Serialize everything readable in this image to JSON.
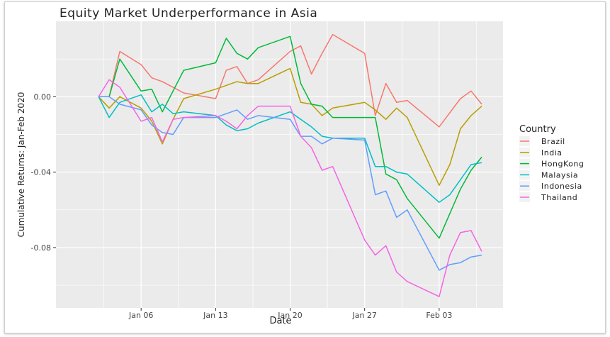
{
  "chart_data": {
    "type": "line",
    "title": "Equity Market Underperformance in Asia",
    "xlabel": "Date",
    "ylabel": "Cumulative Returns: Jan-Feb 2020",
    "x": [
      "2020-01-02",
      "2020-01-03",
      "2020-01-04",
      "2020-01-06",
      "2020-01-07",
      "2020-01-08",
      "2020-01-09",
      "2020-01-10",
      "2020-01-12",
      "2020-01-13",
      "2020-01-14",
      "2020-01-15",
      "2020-01-16",
      "2020-01-17",
      "2020-01-19",
      "2020-01-20",
      "2020-01-21",
      "2020-01-22",
      "2020-01-23",
      "2020-01-24",
      "2020-01-27",
      "2020-01-28",
      "2020-01-29",
      "2020-01-30",
      "2020-01-31",
      "2020-02-03",
      "2020-02-04",
      "2020-02-05",
      "2020-02-06",
      "2020-02-07"
    ],
    "xlim": [
      "2019-12-29",
      "2020-02-09"
    ],
    "x_ticks": [
      {
        "date": "2020-01-06",
        "label": "Jan 06"
      },
      {
        "date": "2020-01-13",
        "label": "Jan 13"
      },
      {
        "date": "2020-01-20",
        "label": "Jan 20"
      },
      {
        "date": "2020-01-27",
        "label": "Jan 27"
      },
      {
        "date": "2020-02-03",
        "label": "Feb 03"
      }
    ],
    "ylim": [
      -0.112,
      0.04
    ],
    "y_ticks": [
      {
        "value": 0.0,
        "label": "0.00"
      },
      {
        "value": -0.04,
        "label": "-0.04"
      },
      {
        "value": -0.08,
        "label": "-0.08"
      }
    ],
    "grid": true,
    "legend": {
      "title": "Country",
      "position": "right"
    },
    "series": [
      {
        "name": "Brazil",
        "color": "#F8766D",
        "points": [
          [
            "2020-01-02",
            0.0
          ],
          [
            "2020-01-03",
            0.0
          ],
          [
            "2020-01-04",
            0.024
          ],
          [
            "2020-01-06",
            0.017
          ],
          [
            "2020-01-07",
            0.01
          ],
          [
            "2020-01-08",
            0.008
          ],
          [
            "2020-01-10",
            0.002
          ],
          [
            "2020-01-13",
            -0.001
          ],
          [
            "2020-01-14",
            0.014
          ],
          [
            "2020-01-15",
            0.016
          ],
          [
            "2020-01-16",
            0.007
          ],
          [
            "2020-01-17",
            0.009
          ],
          [
            "2020-01-20",
            0.024
          ],
          [
            "2020-01-21",
            0.027
          ],
          [
            "2020-01-22",
            0.012
          ],
          [
            "2020-01-23",
            0.023
          ],
          [
            "2020-01-24",
            0.033
          ],
          [
            "2020-01-27",
            0.023
          ],
          [
            "2020-01-28",
            -0.01
          ],
          [
            "2020-01-29",
            0.007
          ],
          [
            "2020-01-30",
            -0.003
          ],
          [
            "2020-01-31",
            -0.002
          ],
          [
            "2020-02-03",
            -0.016
          ],
          [
            "2020-02-05",
            -0.001
          ],
          [
            "2020-02-06",
            0.003
          ],
          [
            "2020-02-07",
            -0.004
          ]
        ]
      },
      {
        "name": "India",
        "color": "#B79F00",
        "points": [
          [
            "2020-01-02",
            0.0
          ],
          [
            "2020-01-03",
            -0.006
          ],
          [
            "2020-01-04",
            0.0
          ],
          [
            "2020-01-06",
            -0.006
          ],
          [
            "2020-01-07",
            -0.013
          ],
          [
            "2020-01-08",
            -0.025
          ],
          [
            "2020-01-09",
            -0.012
          ],
          [
            "2020-01-10",
            -0.001
          ],
          [
            "2020-01-13",
            0.004
          ],
          [
            "2020-01-15",
            0.008
          ],
          [
            "2020-01-16",
            0.007
          ],
          [
            "2020-01-17",
            0.007
          ],
          [
            "2020-01-20",
            0.015
          ],
          [
            "2020-01-21",
            -0.003
          ],
          [
            "2020-01-22",
            -0.004
          ],
          [
            "2020-01-23",
            -0.01
          ],
          [
            "2020-01-24",
            -0.006
          ],
          [
            "2020-01-27",
            -0.003
          ],
          [
            "2020-01-28",
            -0.007
          ],
          [
            "2020-01-29",
            -0.012
          ],
          [
            "2020-01-30",
            -0.006
          ],
          [
            "2020-01-31",
            -0.011
          ],
          [
            "2020-02-03",
            -0.047
          ],
          [
            "2020-02-04",
            -0.036
          ],
          [
            "2020-02-05",
            -0.017
          ],
          [
            "2020-02-06",
            -0.01
          ],
          [
            "2020-02-07",
            -0.005
          ]
        ]
      },
      {
        "name": "HongKong",
        "color": "#00BA38",
        "points": [
          [
            "2020-01-02",
            0.0
          ],
          [
            "2020-01-03",
            0.0
          ],
          [
            "2020-01-04",
            0.02
          ],
          [
            "2020-01-06",
            0.003
          ],
          [
            "2020-01-07",
            0.004
          ],
          [
            "2020-01-08",
            -0.008
          ],
          [
            "2020-01-10",
            0.014
          ],
          [
            "2020-01-13",
            0.018
          ],
          [
            "2020-01-14",
            0.031
          ],
          [
            "2020-01-15",
            0.023
          ],
          [
            "2020-01-16",
            0.02
          ],
          [
            "2020-01-17",
            0.026
          ],
          [
            "2020-01-20",
            0.032
          ],
          [
            "2020-01-21",
            0.007
          ],
          [
            "2020-01-22",
            -0.004
          ],
          [
            "2020-01-23",
            -0.005
          ],
          [
            "2020-01-24",
            -0.011
          ],
          [
            "2020-01-27",
            -0.011
          ],
          [
            "2020-01-28",
            -0.011
          ],
          [
            "2020-01-29",
            -0.041
          ],
          [
            "2020-01-30",
            -0.044
          ],
          [
            "2020-01-31",
            -0.054
          ],
          [
            "2020-02-03",
            -0.075
          ],
          [
            "2020-02-04",
            -0.062
          ],
          [
            "2020-02-05",
            -0.049
          ],
          [
            "2020-02-06",
            -0.039
          ],
          [
            "2020-02-07",
            -0.032
          ]
        ]
      },
      {
        "name": "Malaysia",
        "color": "#00BFC4",
        "points": [
          [
            "2020-01-02",
            0.0
          ],
          [
            "2020-01-03",
            -0.011
          ],
          [
            "2020-01-04",
            -0.003
          ],
          [
            "2020-01-06",
            0.001
          ],
          [
            "2020-01-07",
            -0.008
          ],
          [
            "2020-01-08",
            -0.004
          ],
          [
            "2020-01-09",
            -0.009
          ],
          [
            "2020-01-10",
            -0.008
          ],
          [
            "2020-01-13",
            -0.01
          ],
          [
            "2020-01-14",
            -0.015
          ],
          [
            "2020-01-15",
            -0.018
          ],
          [
            "2020-01-16",
            -0.017
          ],
          [
            "2020-01-17",
            -0.014
          ],
          [
            "2020-01-20",
            -0.008
          ],
          [
            "2020-01-21",
            -0.012
          ],
          [
            "2020-01-22",
            -0.016
          ],
          [
            "2020-01-23",
            -0.021
          ],
          [
            "2020-01-24",
            -0.022
          ],
          [
            "2020-01-27",
            -0.022
          ],
          [
            "2020-01-28",
            -0.037
          ],
          [
            "2020-01-29",
            -0.037
          ],
          [
            "2020-01-30",
            -0.04
          ],
          [
            "2020-01-31",
            -0.041
          ],
          [
            "2020-02-03",
            -0.056
          ],
          [
            "2020-02-04",
            -0.052
          ],
          [
            "2020-02-05",
            -0.044
          ],
          [
            "2020-02-06",
            -0.036
          ],
          [
            "2020-02-07",
            -0.035
          ]
        ]
      },
      {
        "name": "Indonesia",
        "color": "#619CFF",
        "points": [
          [
            "2020-01-02",
            0.0
          ],
          [
            "2020-01-03",
            0.0
          ],
          [
            "2020-01-04",
            -0.004
          ],
          [
            "2020-01-06",
            -0.007
          ],
          [
            "2020-01-07",
            -0.015
          ],
          [
            "2020-01-08",
            -0.019
          ],
          [
            "2020-01-09",
            -0.02
          ],
          [
            "2020-01-10",
            -0.011
          ],
          [
            "2020-01-13",
            -0.011
          ],
          [
            "2020-01-15",
            -0.007
          ],
          [
            "2020-01-16",
            -0.012
          ],
          [
            "2020-01-17",
            -0.01
          ],
          [
            "2020-01-20",
            -0.012
          ],
          [
            "2020-01-21",
            -0.021
          ],
          [
            "2020-01-22",
            -0.021
          ],
          [
            "2020-01-23",
            -0.025
          ],
          [
            "2020-01-24",
            -0.022
          ],
          [
            "2020-01-27",
            -0.023
          ],
          [
            "2020-01-28",
            -0.052
          ],
          [
            "2020-01-29",
            -0.05
          ],
          [
            "2020-01-30",
            -0.064
          ],
          [
            "2020-01-31",
            -0.06
          ],
          [
            "2020-02-03",
            -0.092
          ],
          [
            "2020-02-04",
            -0.089
          ],
          [
            "2020-02-05",
            -0.088
          ],
          [
            "2020-02-06",
            -0.085
          ],
          [
            "2020-02-07",
            -0.084
          ]
        ]
      },
      {
        "name": "Thailand",
        "color": "#F564E3",
        "points": [
          [
            "2020-01-02",
            0.0
          ],
          [
            "2020-01-03",
            0.009
          ],
          [
            "2020-01-04",
            0.005
          ],
          [
            "2020-01-06",
            -0.013
          ],
          [
            "2020-01-07",
            -0.011
          ],
          [
            "2020-01-08",
            -0.024
          ],
          [
            "2020-01-09",
            -0.012
          ],
          [
            "2020-01-10",
            -0.011
          ],
          [
            "2020-01-13",
            -0.01
          ],
          [
            "2020-01-14",
            -0.013
          ],
          [
            "2020-01-15",
            -0.017
          ],
          [
            "2020-01-16",
            -0.01
          ],
          [
            "2020-01-17",
            -0.005
          ],
          [
            "2020-01-20",
            -0.005
          ],
          [
            "2020-01-21",
            -0.021
          ],
          [
            "2020-01-22",
            -0.027
          ],
          [
            "2020-01-23",
            -0.039
          ],
          [
            "2020-01-24",
            -0.037
          ],
          [
            "2020-01-27",
            -0.076
          ],
          [
            "2020-01-28",
            -0.084
          ],
          [
            "2020-01-29",
            -0.079
          ],
          [
            "2020-01-30",
            -0.093
          ],
          [
            "2020-01-31",
            -0.098
          ],
          [
            "2020-02-03",
            -0.106
          ],
          [
            "2020-02-04",
            -0.084
          ],
          [
            "2020-02-05",
            -0.072
          ],
          [
            "2020-02-06",
            -0.071
          ],
          [
            "2020-02-07",
            -0.082
          ]
        ]
      }
    ]
  }
}
